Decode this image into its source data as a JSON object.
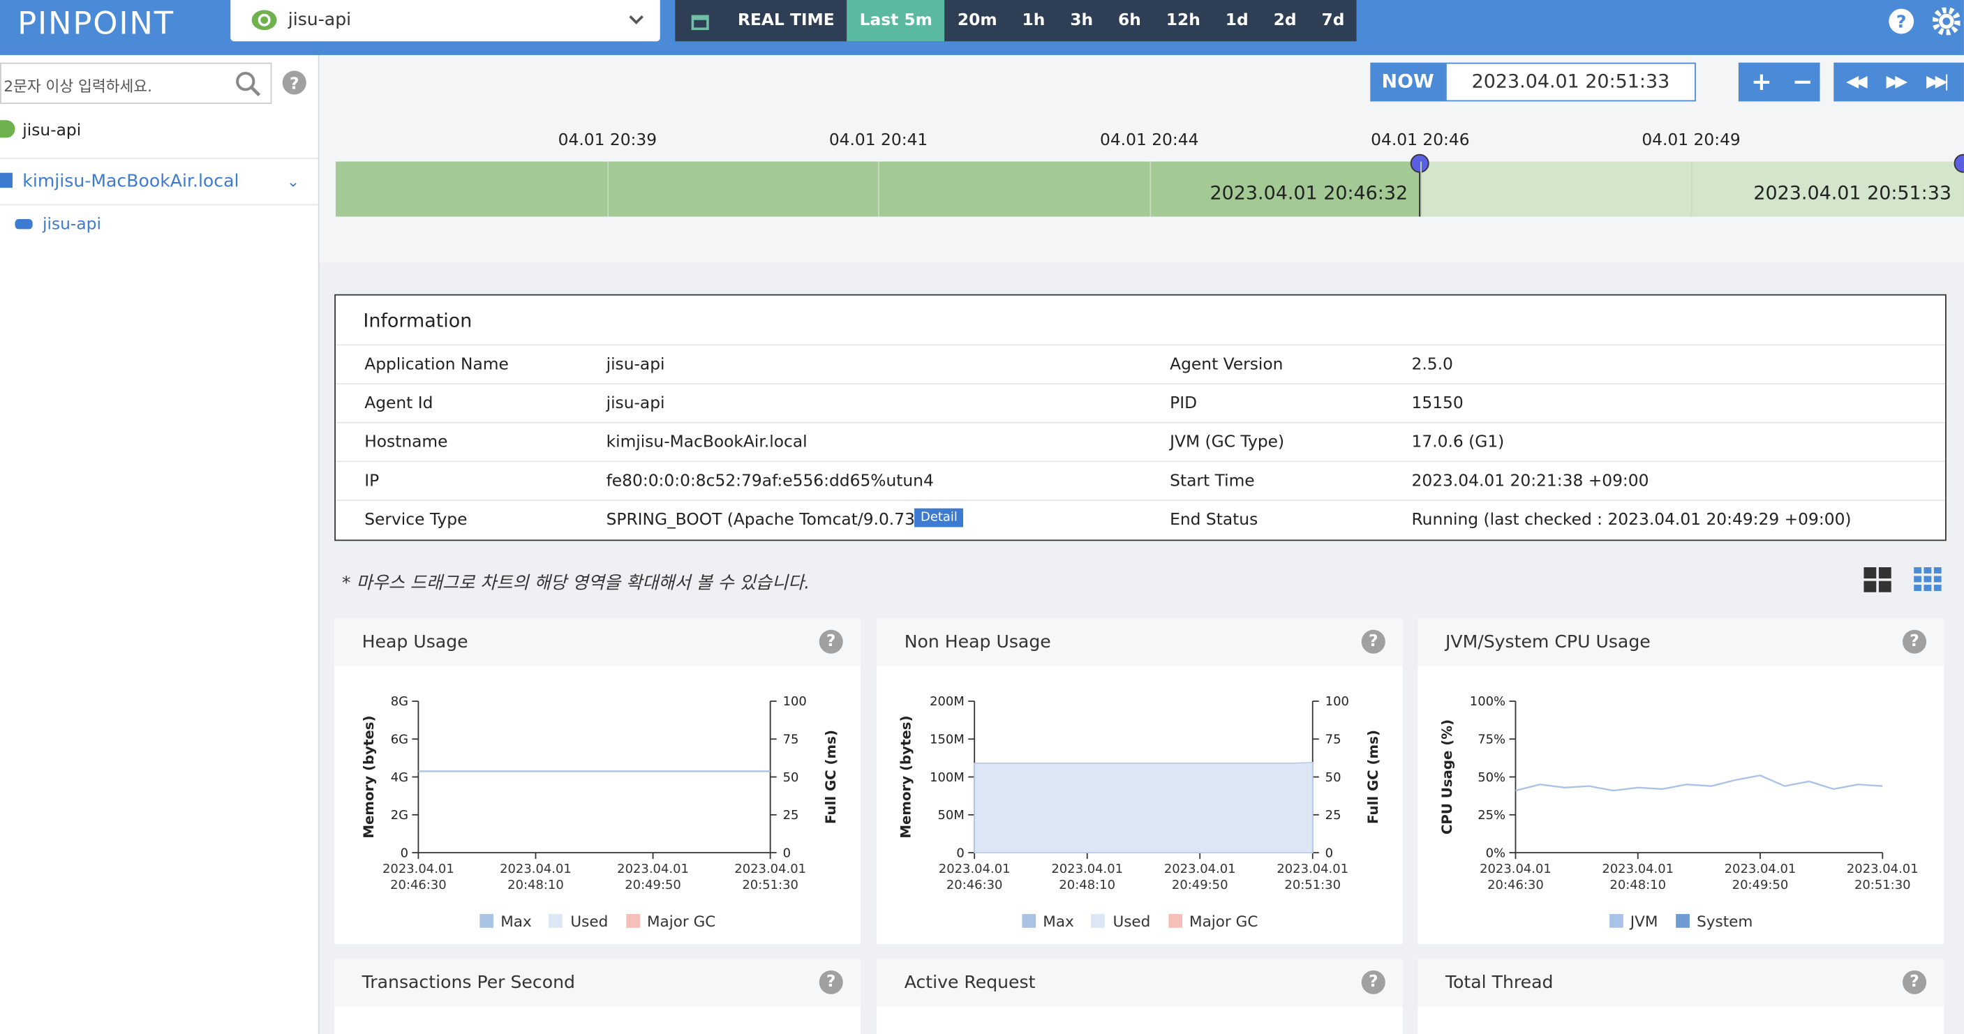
{
  "header": {
    "logo": "PINPOINT",
    "app": "jisu-api",
    "realtime": "REAL TIME",
    "ranges": [
      "Last 5m",
      "20m",
      "1h",
      "3h",
      "6h",
      "12h",
      "1d",
      "2d",
      "7d"
    ]
  },
  "sidebar": {
    "search_placeholder": "2문자 이상 입력하세요.",
    "app": "jisu-api",
    "host": "kimjisu-MacBookAir.local",
    "agent": "jisu-api"
  },
  "timeline": {
    "now": "NOW",
    "datetime": "2023.04.01 20:51:33",
    "ticks": [
      "04.01 20:39",
      "04.01 20:41",
      "04.01 20:44",
      "04.01 20:46",
      "04.01 20:49"
    ],
    "selected": "2023.04.01 20:46:32",
    "end": "2023.04.01 20:51:33"
  },
  "information": {
    "title": "Information",
    "detail": "Detail",
    "rows": [
      [
        "Application Name",
        "jisu-api",
        "Agent Version",
        "2.5.0"
      ],
      [
        "Agent Id",
        "jisu-api",
        "PID",
        "15150"
      ],
      [
        "Hostname",
        "kimjisu-MacBookAir.local",
        "JVM (GC Type)",
        "17.0.6 (G1)"
      ],
      [
        "IP",
        "fe80:0:0:0:8c52:79af:e556:dd65%utun4",
        "Start Time",
        "2023.04.01 20:21:38 +09:00"
      ],
      [
        "Service Type",
        "SPRING_BOOT (Apache Tomcat/9.0.73)",
        "End Status",
        "Running (last checked : 2023.04.01 20:49:29 +09:00)"
      ]
    ]
  },
  "hint": "* 마우스 드래그로 차트의 해당 영역을 확대해서 볼 수 있습니다.",
  "chart_data": [
    {
      "type": "line",
      "title": "Heap Usage",
      "ylabel": "Memory (bytes)",
      "y2label": "Full GC (ms)",
      "x": [
        "2023.04.01 20:46:30",
        "2023.04.01 20:46:50",
        "2023.04.01 20:47:10",
        "2023.04.01 20:47:30",
        "2023.04.01 20:47:50",
        "2023.04.01 20:48:10",
        "2023.04.01 20:48:30",
        "2023.04.01 20:48:50",
        "2023.04.01 20:49:10",
        "2023.04.01 20:49:30",
        "2023.04.01 20:49:50",
        "2023.04.01 20:50:10",
        "2023.04.01 20:50:30",
        "2023.04.01 20:50:50",
        "2023.04.01 20:51:10",
        "2023.04.01 20:51:30"
      ],
      "xlim": [
        "2023.04.01 20:46:30",
        "2023.04.01 20:51:30"
      ],
      "xticks": [
        "2023.04.01 20:46:30",
        "2023.04.01 20:48:10",
        "2023.04.01 20:49:50",
        "2023.04.01 20:51:30"
      ],
      "ylim": [
        0,
        8
      ],
      "yticks": [
        0,
        {
          "value": 2,
          "label": "2G"
        },
        {
          "value": 4,
          "label": "4G"
        },
        {
          "value": 6,
          "label": "6G"
        },
        {
          "value": 8,
          "label": "8G"
        }
      ],
      "y2lim": [
        0,
        100
      ],
      "y2ticks": [
        0,
        25,
        50,
        75,
        100
      ],
      "series": [
        {
          "name": "Max",
          "color": "#a9c3e2",
          "values": [
            4.3,
            4.3,
            4.3,
            4.3,
            4.3,
            4.3,
            4.3,
            4.3,
            4.3,
            4.3,
            4.3,
            4.3,
            4.3,
            4.3,
            4.3,
            4.3
          ]
        },
        {
          "name": "Used",
          "color": "#dde6f5",
          "values": [
            null,
            null,
            null,
            null,
            null,
            null,
            null,
            null,
            null,
            null,
            null,
            null,
            null,
            null,
            null,
            null
          ]
        },
        {
          "name": "Major GC",
          "color": "#f4c0b8",
          "axis": "y2",
          "values": [
            null,
            null,
            null,
            null,
            null,
            null,
            null,
            null,
            null,
            null,
            null,
            null,
            null,
            null,
            null,
            null
          ]
        }
      ]
    },
    {
      "type": "area",
      "title": "Non Heap Usage",
      "ylabel": "Memory (bytes)",
      "y2label": "Full GC (ms)",
      "x": [
        "2023.04.01 20:46:30",
        "2023.04.01 20:46:50",
        "2023.04.01 20:47:10",
        "2023.04.01 20:47:30",
        "2023.04.01 20:47:50",
        "2023.04.01 20:48:10",
        "2023.04.01 20:48:30",
        "2023.04.01 20:48:50",
        "2023.04.01 20:49:10",
        "2023.04.01 20:49:30",
        "2023.04.01 20:49:50",
        "2023.04.01 20:50:10",
        "2023.04.01 20:50:30",
        "2023.04.01 20:50:50",
        "2023.04.01 20:51:10",
        "2023.04.01 20:51:30"
      ],
      "xlim": [
        "2023.04.01 20:46:30",
        "2023.04.01 20:51:30"
      ],
      "xticks": [
        "2023.04.01 20:46:30",
        "2023.04.01 20:48:10",
        "2023.04.01 20:49:50",
        "2023.04.01 20:51:30"
      ],
      "ylim": [
        0,
        200
      ],
      "yticks": [
        0,
        {
          "value": 50,
          "label": "50M"
        },
        {
          "value": 100,
          "label": "100M"
        },
        {
          "value": 150,
          "label": "150M"
        },
        {
          "value": 200,
          "label": "200M"
        }
      ],
      "y2lim": [
        0,
        100
      ],
      "y2ticks": [
        0,
        25,
        50,
        75,
        100
      ],
      "series": [
        {
          "name": "Max",
          "color": "#a9c3e2",
          "values": [
            null,
            null,
            null,
            null,
            null,
            null,
            null,
            null,
            null,
            null,
            null,
            null,
            null,
            null,
            null,
            null
          ]
        },
        {
          "name": "Used",
          "color": "#dde6f5",
          "values": [
            118,
            118,
            118,
            118,
            118,
            118,
            118,
            118,
            118,
            118,
            118,
            118,
            118,
            118,
            118,
            119
          ]
        },
        {
          "name": "Major GC",
          "color": "#f4c0b8",
          "axis": "y2",
          "values": [
            null,
            null,
            null,
            null,
            null,
            null,
            null,
            null,
            null,
            null,
            null,
            null,
            null,
            null,
            null,
            null
          ]
        }
      ]
    },
    {
      "type": "line",
      "title": "JVM/System CPU Usage",
      "ylabel": "CPU Usage (%)",
      "x": [
        "2023.04.01 20:46:30",
        "2023.04.01 20:46:50",
        "2023.04.01 20:47:10",
        "2023.04.01 20:47:30",
        "2023.04.01 20:47:50",
        "2023.04.01 20:48:10",
        "2023.04.01 20:48:30",
        "2023.04.01 20:48:50",
        "2023.04.01 20:49:10",
        "2023.04.01 20:49:30",
        "2023.04.01 20:49:50",
        "2023.04.01 20:50:10",
        "2023.04.01 20:50:30",
        "2023.04.01 20:50:50",
        "2023.04.01 20:51:10",
        "2023.04.01 20:51:30"
      ],
      "xlim": [
        "2023.04.01 20:46:30",
        "2023.04.01 20:51:30"
      ],
      "xticks": [
        "2023.04.01 20:46:30",
        "2023.04.01 20:48:10",
        "2023.04.01 20:49:50",
        "2023.04.01 20:51:30"
      ],
      "ylim": [
        0,
        100
      ],
      "yticks": [
        {
          "value": 0,
          "label": "0%"
        },
        {
          "value": 25,
          "label": "25%"
        },
        {
          "value": 50,
          "label": "50%"
        },
        {
          "value": 75,
          "label": "75%"
        },
        {
          "value": 100,
          "label": "100%"
        }
      ],
      "series": [
        {
          "name": "JVM",
          "color": "#a9c3e8",
          "values": [
            41,
            45,
            43,
            44,
            41,
            43,
            42,
            45,
            44,
            48,
            51,
            44,
            47,
            42,
            45,
            44
          ]
        },
        {
          "name": "System",
          "color": "#6f9bd1",
          "values": [
            null,
            null,
            null,
            null,
            null,
            null,
            null,
            null,
            null,
            null,
            null,
            null,
            null,
            null,
            null,
            null
          ]
        }
      ]
    }
  ],
  "bottom_panels": [
    "Transactions Per Second",
    "Active Request",
    "Total Thread"
  ]
}
